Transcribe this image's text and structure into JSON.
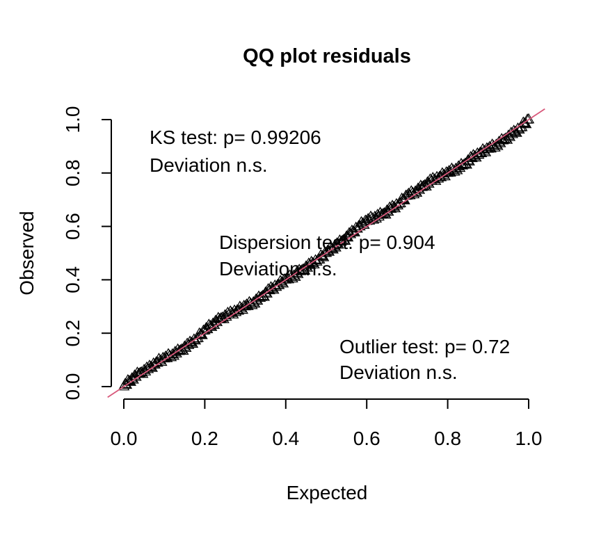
{
  "chart_data": {
    "type": "scatter",
    "title": "QQ plot residuals",
    "xlabel": "Expected",
    "ylabel": "Observed",
    "xlim": [
      0,
      1
    ],
    "ylim": [
      0,
      1
    ],
    "xticks": [
      "0.0",
      "0.2",
      "0.4",
      "0.6",
      "0.8",
      "1.0"
    ],
    "yticks": [
      "0.0",
      "0.2",
      "0.4",
      "0.6",
      "0.8",
      "1.0"
    ],
    "marker": "open-triangle",
    "reference_line": {
      "intercept": 0,
      "slope": 1,
      "color": "#d8577a"
    },
    "annotations": [
      {
        "line1": "KS test: p= 0.99206",
        "line2": "Deviation  n.s."
      },
      {
        "line1": "Dispersion test: p= 0.904",
        "line2": "Deviation  n.s."
      },
      {
        "line1": "Outlier test: p= 0.72",
        "line2": "Deviation  n.s."
      }
    ],
    "series": [
      {
        "x": [
          0.0,
          0.02,
          0.04,
          0.06,
          0.08,
          0.1,
          0.12,
          0.14,
          0.16,
          0.18,
          0.2,
          0.22,
          0.24,
          0.26,
          0.28,
          0.3,
          0.32,
          0.34,
          0.36,
          0.38,
          0.4,
          0.42,
          0.44,
          0.46,
          0.48,
          0.5,
          0.52,
          0.54,
          0.56,
          0.58,
          0.6,
          0.62,
          0.64,
          0.66,
          0.68,
          0.7,
          0.72,
          0.74,
          0.76,
          0.78,
          0.8,
          0.82,
          0.84,
          0.86,
          0.88,
          0.9,
          0.92,
          0.94,
          0.96,
          0.98,
          1.0
        ],
        "y": [
          0.0,
          0.03,
          0.05,
          0.065,
          0.09,
          0.105,
          0.12,
          0.135,
          0.155,
          0.18,
          0.21,
          0.235,
          0.255,
          0.27,
          0.285,
          0.3,
          0.315,
          0.335,
          0.36,
          0.38,
          0.4,
          0.415,
          0.435,
          0.455,
          0.475,
          0.5,
          0.525,
          0.545,
          0.57,
          0.6,
          0.62,
          0.635,
          0.645,
          0.665,
          0.685,
          0.715,
          0.73,
          0.75,
          0.77,
          0.785,
          0.8,
          0.815,
          0.83,
          0.855,
          0.875,
          0.89,
          0.905,
          0.925,
          0.945,
          0.97,
          1.0
        ]
      }
    ]
  }
}
